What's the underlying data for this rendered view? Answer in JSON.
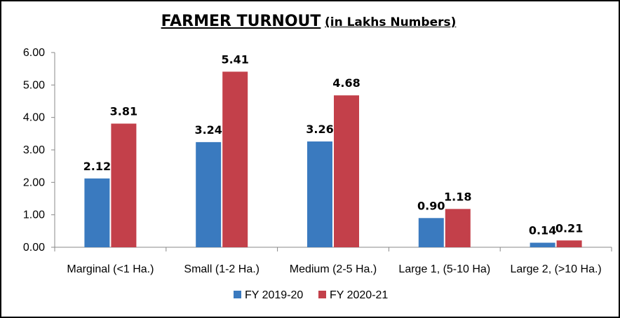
{
  "chart_data": {
    "type": "bar",
    "title": "FARMER TURNOUT",
    "subtitle": "(in Lakhs Numbers)",
    "xlabel": "",
    "ylabel": "",
    "ylim": [
      0,
      6
    ],
    "y_ticks": [
      "0.00",
      "1.00",
      "2.00",
      "3.00",
      "4.00",
      "5.00",
      "6.00"
    ],
    "grid": false,
    "legend_position": "bottom",
    "categories": [
      "Marginal (<1 Ha.)",
      "Small (1-2 Ha.)",
      "Medium (2-5 Ha.)",
      "Large 1, (5-10 Ha)",
      "Large 2, (>10 Ha.)"
    ],
    "series": [
      {
        "name": "FY 2019-20",
        "color": "#3a7abf",
        "values": [
          2.12,
          3.24,
          3.26,
          0.9,
          0.14
        ],
        "labels": [
          "2.12",
          "3.24",
          "3.26",
          "0.90",
          "0.14"
        ]
      },
      {
        "name": "FY 2020-21",
        "color": "#c3404a",
        "values": [
          3.81,
          5.41,
          4.68,
          1.18,
          0.21
        ],
        "labels": [
          "3.81",
          "5.41",
          "4.68",
          "1.18",
          "0.21"
        ]
      }
    ]
  }
}
